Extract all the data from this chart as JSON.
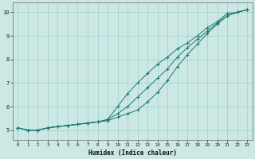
{
  "xlabel": "Humidex (Indice chaleur)",
  "x_values": [
    0,
    1,
    2,
    3,
    4,
    5,
    6,
    7,
    8,
    9,
    10,
    11,
    12,
    13,
    14,
    15,
    16,
    17,
    18,
    19,
    20,
    21,
    22,
    23
  ],
  "line1": [
    5.1,
    5.0,
    5.0,
    5.1,
    5.15,
    5.2,
    5.25,
    5.3,
    5.35,
    5.45,
    5.7,
    6.0,
    6.4,
    6.8,
    7.2,
    7.6,
    8.1,
    8.5,
    8.85,
    9.2,
    9.55,
    9.85,
    10.0,
    10.1
  ],
  "line2": [
    5.1,
    5.0,
    5.0,
    5.1,
    5.15,
    5.2,
    5.25,
    5.3,
    5.35,
    5.45,
    6.0,
    6.55,
    7.0,
    7.4,
    7.8,
    8.1,
    8.45,
    8.7,
    9.0,
    9.35,
    9.6,
    9.95,
    10.0,
    10.1
  ],
  "line3": [
    5.1,
    5.0,
    5.0,
    5.1,
    5.15,
    5.2,
    5.25,
    5.3,
    5.35,
    5.4,
    5.55,
    5.7,
    5.85,
    6.2,
    6.6,
    7.1,
    7.7,
    8.2,
    8.65,
    9.1,
    9.5,
    9.85,
    10.0,
    10.1
  ],
  "line_color": "#1a7a6e",
  "bg_color": "#cce8e4",
  "grid_color": "#9ececa",
  "ylim": [
    4.6,
    10.4
  ],
  "yticks": [
    5,
    6,
    7,
    8,
    9,
    10
  ],
  "xlim": [
    -0.5,
    23.5
  ],
  "xticks": [
    0,
    1,
    2,
    3,
    4,
    5,
    6,
    7,
    8,
    9,
    10,
    11,
    12,
    13,
    14,
    15,
    16,
    17,
    18,
    19,
    20,
    21,
    22,
    23
  ]
}
